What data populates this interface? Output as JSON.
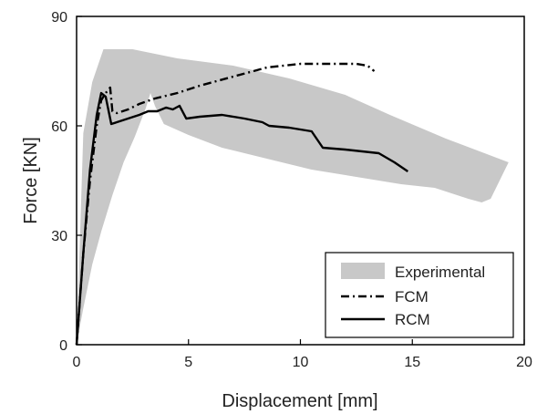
{
  "chart_data": {
    "type": "line",
    "xlabel": "Displacement [mm]",
    "ylabel": "Force [KN]",
    "xlim": [
      0,
      20
    ],
    "ylim": [
      0,
      90
    ],
    "xticks": [
      0,
      5,
      10,
      15,
      20
    ],
    "yticks": [
      0,
      30,
      60,
      90
    ],
    "grid": false,
    "legend_position": "bottom-right",
    "experimental_band": {
      "name": "Experimental",
      "color": "#c8c8c8",
      "upper": [
        [
          0,
          0
        ],
        [
          0.3,
          58
        ],
        [
          0.7,
          72
        ],
        [
          1.2,
          81
        ],
        [
          2.5,
          81
        ],
        [
          4.5,
          78.5
        ],
        [
          7,
          76.5
        ],
        [
          9.5,
          73
        ],
        [
          12,
          68.5
        ],
        [
          14,
          63
        ],
        [
          16.5,
          56.5
        ],
        [
          19.3,
          50
        ]
      ],
      "lower": [
        [
          19.3,
          50
        ],
        [
          18.5,
          40
        ],
        [
          18.1,
          39
        ],
        [
          17.5,
          40
        ],
        [
          16,
          43
        ],
        [
          14.5,
          44
        ],
        [
          12.5,
          46
        ],
        [
          10.5,
          48
        ],
        [
          8.5,
          51
        ],
        [
          6.5,
          54
        ],
        [
          5,
          57.5
        ],
        [
          3.9,
          60.5
        ],
        [
          3.5,
          65.5
        ],
        [
          3.3,
          69
        ],
        [
          3.1,
          65
        ],
        [
          2.6,
          57
        ],
        [
          2.1,
          50
        ],
        [
          1.6,
          41
        ],
        [
          1.1,
          31
        ],
        [
          0.7,
          22
        ],
        [
          0.3,
          10
        ],
        [
          0,
          0
        ]
      ]
    },
    "series": [
      {
        "name": "FCM",
        "color": "#000000",
        "dash": "dashdot",
        "points": [
          [
            0,
            0
          ],
          [
            0.3,
            25
          ],
          [
            0.6,
            45
          ],
          [
            0.9,
            60
          ],
          [
            1.1,
            67
          ],
          [
            1.3,
            69
          ],
          [
            1.5,
            70.5
          ],
          [
            1.6,
            64
          ],
          [
            1.8,
            63.5
          ],
          [
            2.3,
            64.5
          ],
          [
            2.8,
            66
          ],
          [
            3.5,
            67.5
          ],
          [
            4.5,
            69
          ],
          [
            5.5,
            71
          ],
          [
            7,
            73.5
          ],
          [
            8.5,
            76
          ],
          [
            10,
            77
          ],
          [
            11.5,
            77
          ],
          [
            12.5,
            77
          ],
          [
            13,
            76.5
          ],
          [
            13.3,
            75
          ]
        ]
      },
      {
        "name": "RCM",
        "color": "#000000",
        "dash": "solid",
        "points": [
          [
            0,
            0
          ],
          [
            0.3,
            25
          ],
          [
            0.6,
            48
          ],
          [
            0.9,
            63
          ],
          [
            1.1,
            69
          ],
          [
            1.3,
            68
          ],
          [
            1.55,
            60.5
          ],
          [
            1.8,
            61
          ],
          [
            2.3,
            62
          ],
          [
            2.8,
            63
          ],
          [
            3.2,
            64
          ],
          [
            3.6,
            64
          ],
          [
            4,
            65
          ],
          [
            4.3,
            64.5
          ],
          [
            4.6,
            65.5
          ],
          [
            4.9,
            62
          ],
          [
            5.5,
            62.5
          ],
          [
            6.5,
            63
          ],
          [
            7.5,
            62
          ],
          [
            8.3,
            61
          ],
          [
            8.6,
            60
          ],
          [
            9.5,
            59.5
          ],
          [
            10.5,
            58.5
          ],
          [
            11,
            54
          ],
          [
            12,
            53.5
          ],
          [
            13.5,
            52.5
          ],
          [
            14.2,
            50
          ],
          [
            14.8,
            47.5
          ]
        ]
      }
    ]
  }
}
